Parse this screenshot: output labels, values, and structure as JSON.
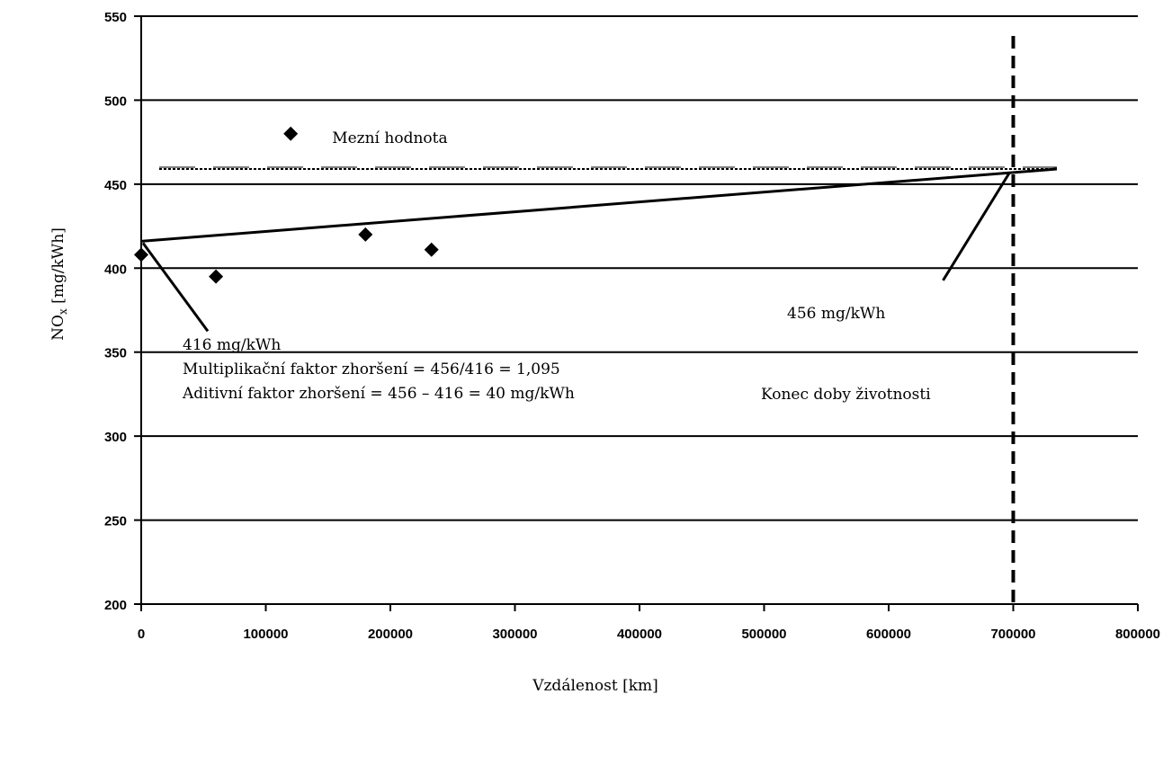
{
  "chart_data": {
    "type": "scatter",
    "title": "",
    "xlabel": "Vzdálenost [km]",
    "ylabel": {
      "main": "NO",
      "sub": "x",
      "unit": " [mg/kWh]"
    },
    "xlim": [
      0,
      800000
    ],
    "ylim": [
      200,
      550
    ],
    "x_ticks": [
      "0",
      "100000",
      "200000",
      "300000",
      "400000",
      "500000",
      "600000",
      "700000",
      "800000"
    ],
    "y_ticks": [
      "200",
      "250",
      "300",
      "350",
      "400",
      "450",
      "500",
      "550"
    ],
    "grid": "horizontal",
    "series": [
      {
        "name": "Mezní hodnota",
        "marker": "diamond",
        "points": [
          {
            "x": 0,
            "y": 408
          },
          {
            "x": 60000,
            "y": 395
          },
          {
            "x": 180000,
            "y": 420
          },
          {
            "x": 233000,
            "y": 411
          }
        ]
      }
    ],
    "trend_line": {
      "x": [
        0,
        735000
      ],
      "y": [
        416,
        459
      ]
    },
    "limit_line": {
      "y": 459,
      "x": [
        0,
        735000
      ],
      "style": "dotted"
    },
    "end_of_life": {
      "x": 700000,
      "style": "dashed",
      "label": "Konec doby životnosti"
    },
    "annotations": {
      "start_value": "416 mg/kWh",
      "multiplicative": "Multiplikační faktor zhoršení = 456/416 = 1,095",
      "additive": "Aditivní faktor zhoršení = 456 – 416 = 40 mg/kWh",
      "end_value": "456 mg/kWh"
    },
    "legend": {
      "label": "Mezní hodnota",
      "placement": "top-left"
    }
  }
}
